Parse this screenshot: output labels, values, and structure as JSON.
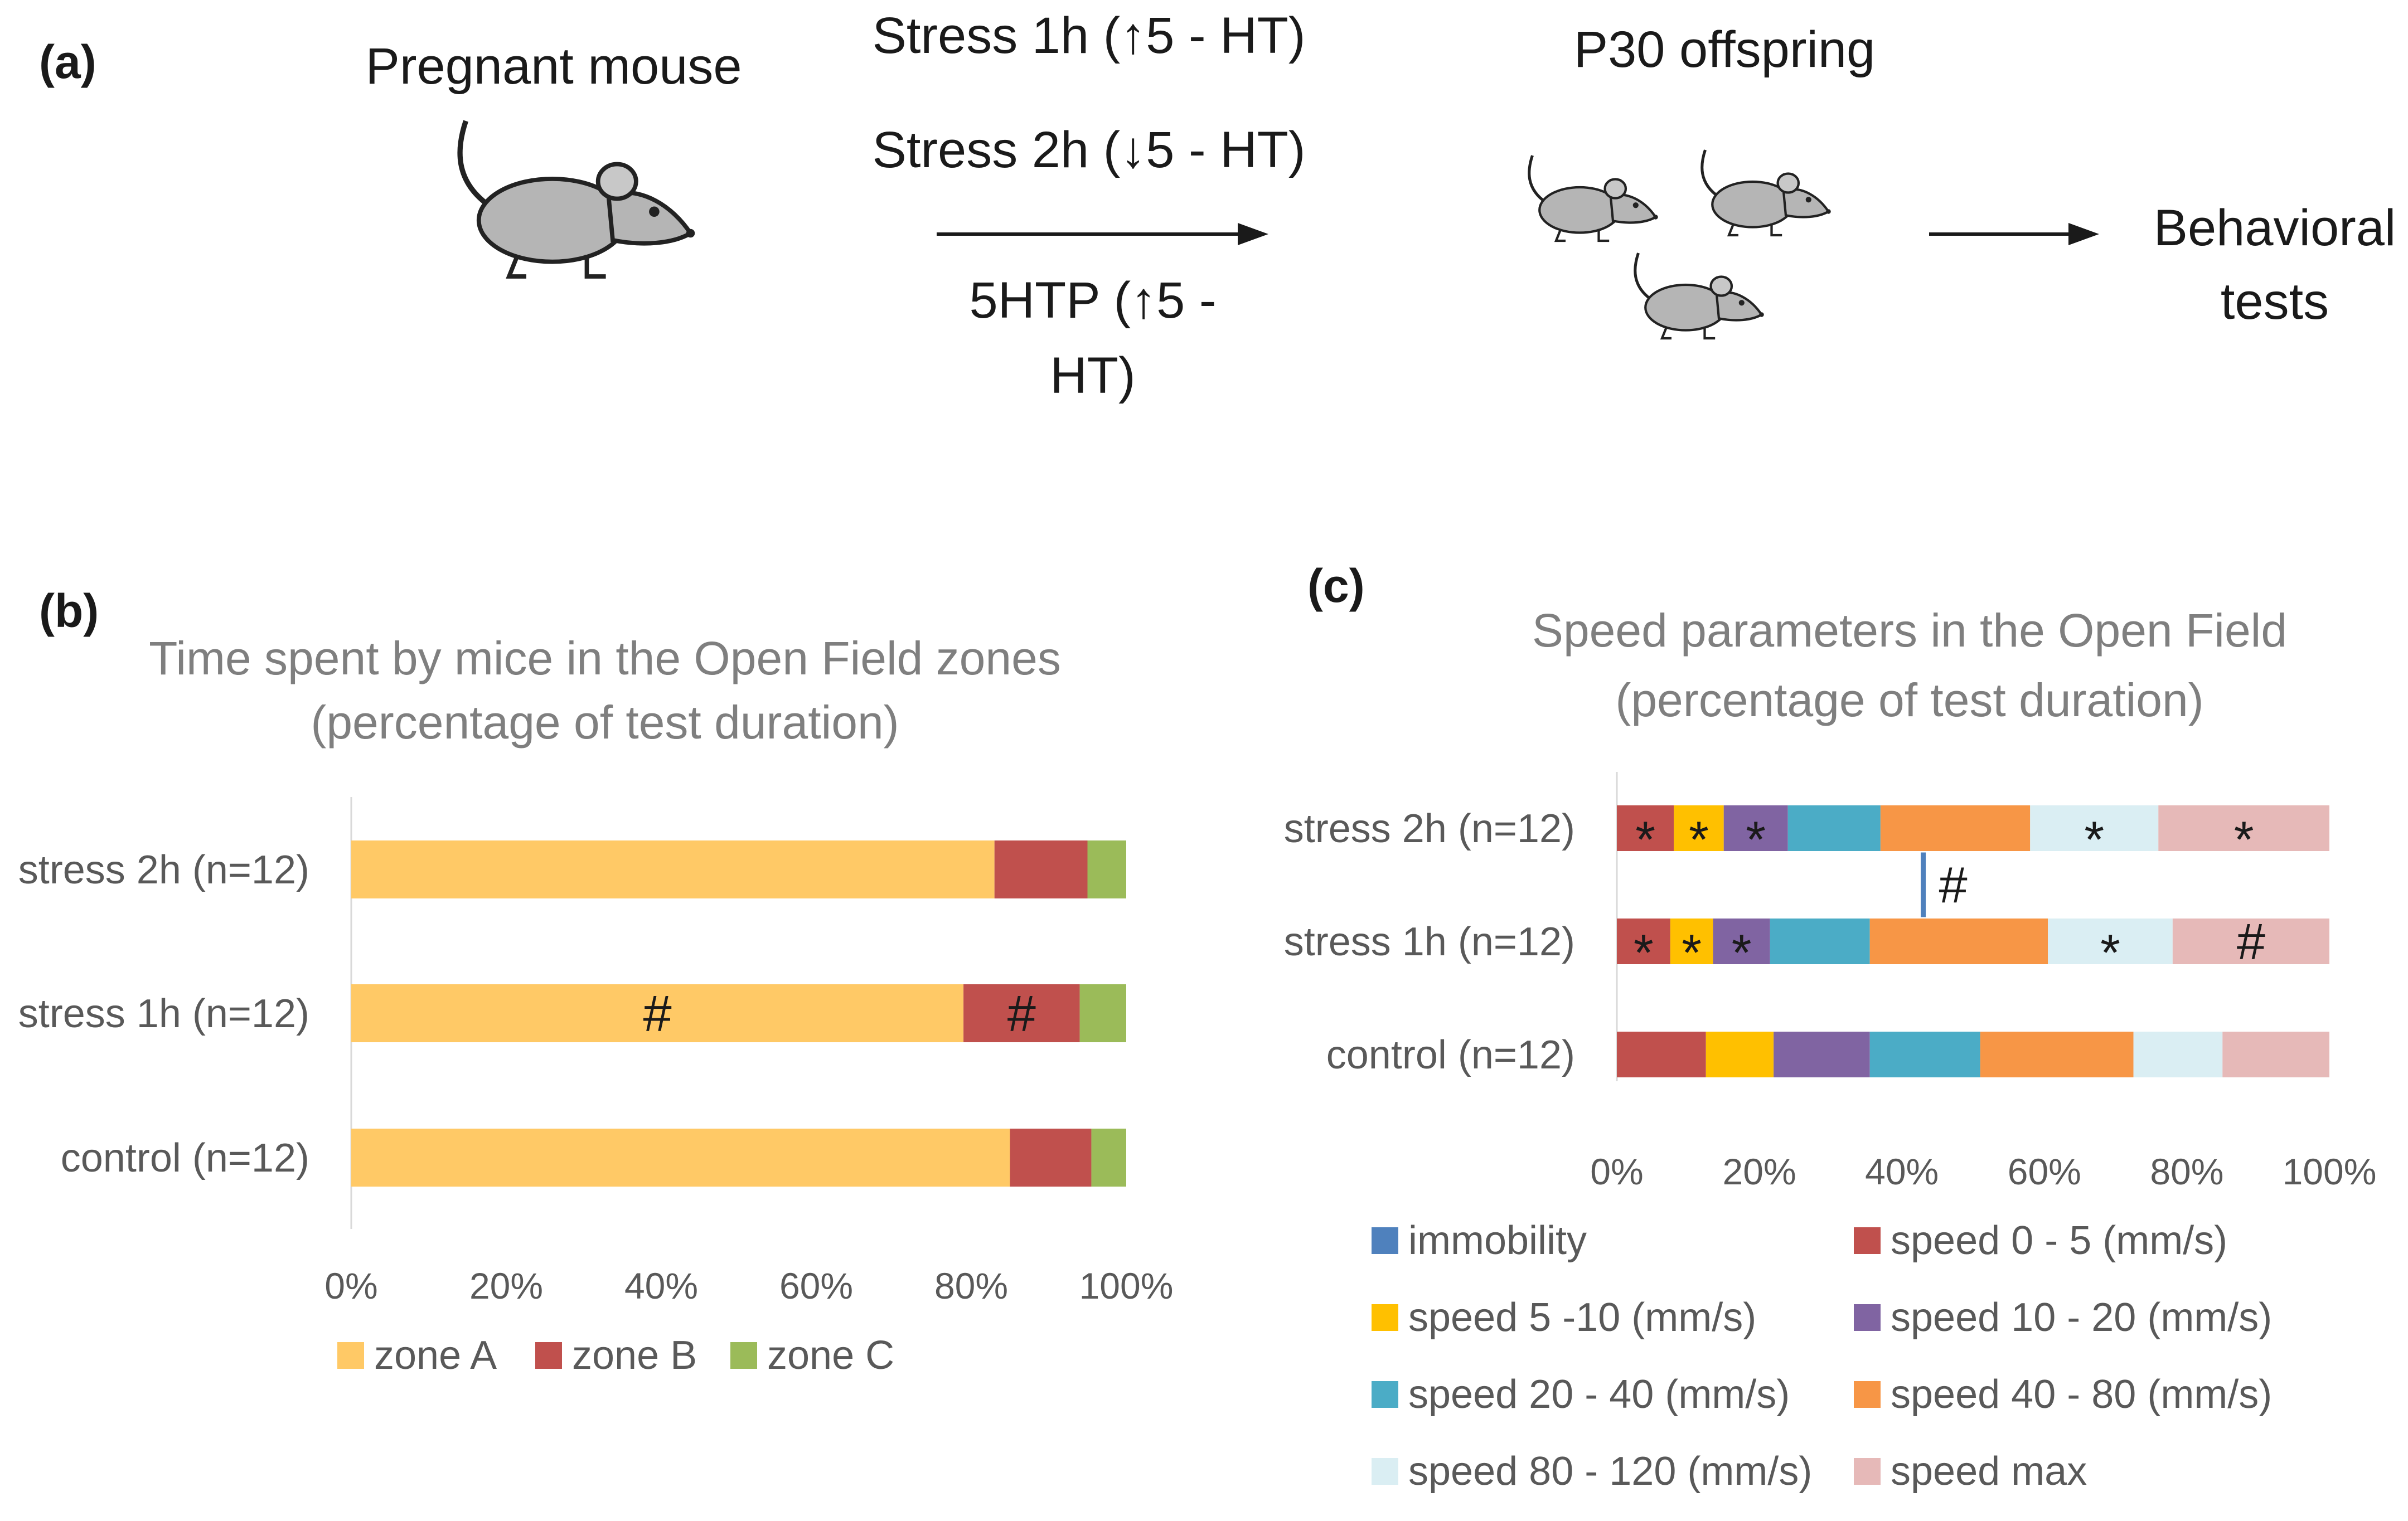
{
  "diagram": {
    "panel_a": "(a)",
    "pregnant": "Pregnant mouse",
    "stress1": "Stress 1h (↑5 - HT)",
    "stress2": "Stress 2h (↓5 - HT)",
    "htp_line1": "5HTP (↑5 -",
    "htp_line2": "HT)",
    "offspring": "P30 offspring",
    "behav_line1": "Behavioral",
    "behav_line2": "tests",
    "icons": [
      "mouse-icon",
      "arrow-icon"
    ]
  },
  "chart_data": [
    {
      "type": "bar",
      "orientation": "horizontal",
      "stacked": "percent",
      "panel_label": "(b)",
      "title_lines": [
        "Time spent by mice in the Open Field zones",
        "(percentage of test duration)"
      ],
      "categories": [
        "stress 2h (n=12)",
        "stress 1h (n=12)",
        "control (n=12)"
      ],
      "series": [
        {
          "name": "zone A",
          "color": "#FFC966",
          "values": [
            83,
            79,
            85
          ]
        },
        {
          "name": "zone B",
          "color": "#C0504D",
          "values": [
            12,
            15,
            10.5
          ]
        },
        {
          "name": "zone C",
          "color": "#9BBB59",
          "values": [
            5,
            6,
            4.5
          ]
        }
      ],
      "xticks": [
        "0%",
        "20%",
        "40%",
        "60%",
        "80%",
        "100%"
      ],
      "xlim": [
        0,
        100
      ],
      "annotations": [
        {
          "category": 1,
          "series": 0,
          "text": "#"
        },
        {
          "category": 1,
          "series": 1,
          "text": "#"
        }
      ],
      "legend": "bottom"
    },
    {
      "type": "bar",
      "orientation": "horizontal",
      "stacked": "percent",
      "panel_label": "(c)",
      "title_lines": [
        "Speed parameters in the Open Field",
        "(percentage of test duration)"
      ],
      "categories": [
        "stress 2h (n=12)",
        "stress 1h (n=12)",
        "control (n=12)"
      ],
      "series": [
        {
          "name": "immobility",
          "color": "#4F81BD",
          "values": [
            0,
            0,
            0
          ]
        },
        {
          "name": "speed 0 - 5 (mm/s)",
          "color": "#C0504D",
          "values": [
            8,
            7.5,
            12.5
          ]
        },
        {
          "name": "speed 5 -10 (mm/s)",
          "color": "#FFC000",
          "values": [
            7,
            6,
            9.5
          ]
        },
        {
          "name": "speed 10 - 20 (mm/s)",
          "color": "#8064A2",
          "values": [
            9,
            8,
            13.5
          ]
        },
        {
          "name": "speed 20 - 40 (mm/s)",
          "color": "#4BACC6",
          "values": [
            13,
            14,
            15.5
          ]
        },
        {
          "name": "speed 40 - 80 (mm/s)",
          "color": "#F79646",
          "values": [
            21,
            25,
            21.5
          ]
        },
        {
          "name": "speed 80 - 120 (mm/s)",
          "color": "#DAEEF3",
          "values": [
            18,
            17.5,
            12.5
          ]
        },
        {
          "name": "speed max",
          "color": "#E6B9B8",
          "values": [
            24,
            22,
            15
          ]
        }
      ],
      "xticks": [
        "0%",
        "20%",
        "40%",
        "60%",
        "80%",
        "100%"
      ],
      "xlim": [
        0,
        100
      ],
      "annotations": [
        {
          "category": 0,
          "series": 1,
          "text": "*"
        },
        {
          "category": 0,
          "series": 2,
          "text": "*"
        },
        {
          "category": 0,
          "series": 3,
          "text": "*"
        },
        {
          "category": 0,
          "series": 6,
          "text": "*"
        },
        {
          "category": 0,
          "series": 7,
          "text": "*"
        },
        {
          "category": 1,
          "series": 1,
          "text": "*"
        },
        {
          "category": 1,
          "series": 2,
          "text": "*"
        },
        {
          "category": 1,
          "series": 3,
          "text": "*"
        },
        {
          "category": 1,
          "series": 6,
          "text": "*"
        },
        {
          "category": 1,
          "series": 7,
          "text": "#"
        }
      ],
      "between_annotation": {
        "x": 43,
        "text": "#"
      },
      "legend": "bottom"
    }
  ]
}
